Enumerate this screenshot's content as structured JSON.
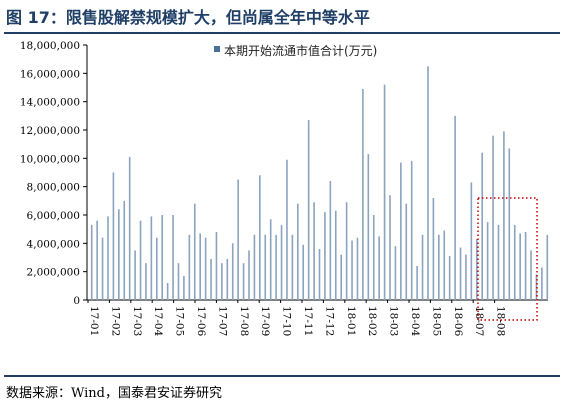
{
  "header": {
    "title": "图 17：限售股解禁规模扩大，但尚属全年中等水平"
  },
  "footer": {
    "source": "数据来源：Wind，国泰君安证券研究"
  },
  "colors": {
    "bar": "#8aa3bf",
    "axis": "#000000",
    "highlight": "#c00000",
    "title": "#1f3f66"
  },
  "chart_data": {
    "type": "bar",
    "xlabel": "",
    "ylabel": "",
    "ylim": [
      0,
      18000000
    ],
    "yticks": [
      0,
      2000000,
      4000000,
      6000000,
      8000000,
      10000000,
      12000000,
      14000000,
      16000000,
      18000000
    ],
    "ytick_labels": [
      "0",
      "2,000,000",
      "4,000,000",
      "6,000,000",
      "8,000,000",
      "10,000,000",
      "12,000,000",
      "14,000,000",
      "16,000,000",
      "18,000,000"
    ],
    "xtick_labels": [
      "17-01",
      "17-02",
      "17-03",
      "17-04",
      "17-05",
      "17-06",
      "17-07",
      "17-08",
      "17-09",
      "17-10",
      "17-11",
      "17-12",
      "18-01",
      "18-02",
      "18-03",
      "18-04",
      "18-05",
      "18-06",
      "18-07",
      "18-08"
    ],
    "grid": false,
    "legend_position": "top-right",
    "highlight_box": "dotted red rectangle around the most recent bars (18-07 to 18-08)",
    "series": [
      {
        "name": "本期开始流通市值合计(万元)",
        "values": [
          5300000,
          5600000,
          4400000,
          5900000,
          9000000,
          6400000,
          7000000,
          10100000,
          3500000,
          5600000,
          2600000,
          5900000,
          4400000,
          6000000,
          1200000,
          6000000,
          2600000,
          1700000,
          4600000,
          6800000,
          4700000,
          4400000,
          2900000,
          4800000,
          2600000,
          2900000,
          4000000,
          8500000,
          2600000,
          3500000,
          4600000,
          8800000,
          4600000,
          5700000,
          4600000,
          5300000,
          9900000,
          4600000,
          6800000,
          3900000,
          12700000,
          6900000,
          3600000,
          6200000,
          8400000,
          6300000,
          3200000,
          6900000,
          4200000,
          4400000,
          14900000,
          10300000,
          6000000,
          4500000,
          15200000,
          7400000,
          3800000,
          9700000,
          6800000,
          9800000,
          2400000,
          4600000,
          16500000,
          7200000,
          4600000,
          4900000,
          3100000,
          13000000,
          3700000,
          3200000,
          8300000,
          4300000,
          10400000,
          5500000,
          11600000,
          5300000,
          11900000,
          10700000,
          5300000,
          4700000,
          4800000,
          3500000,
          1800000,
          2300000,
          4600000
        ]
      }
    ]
  }
}
